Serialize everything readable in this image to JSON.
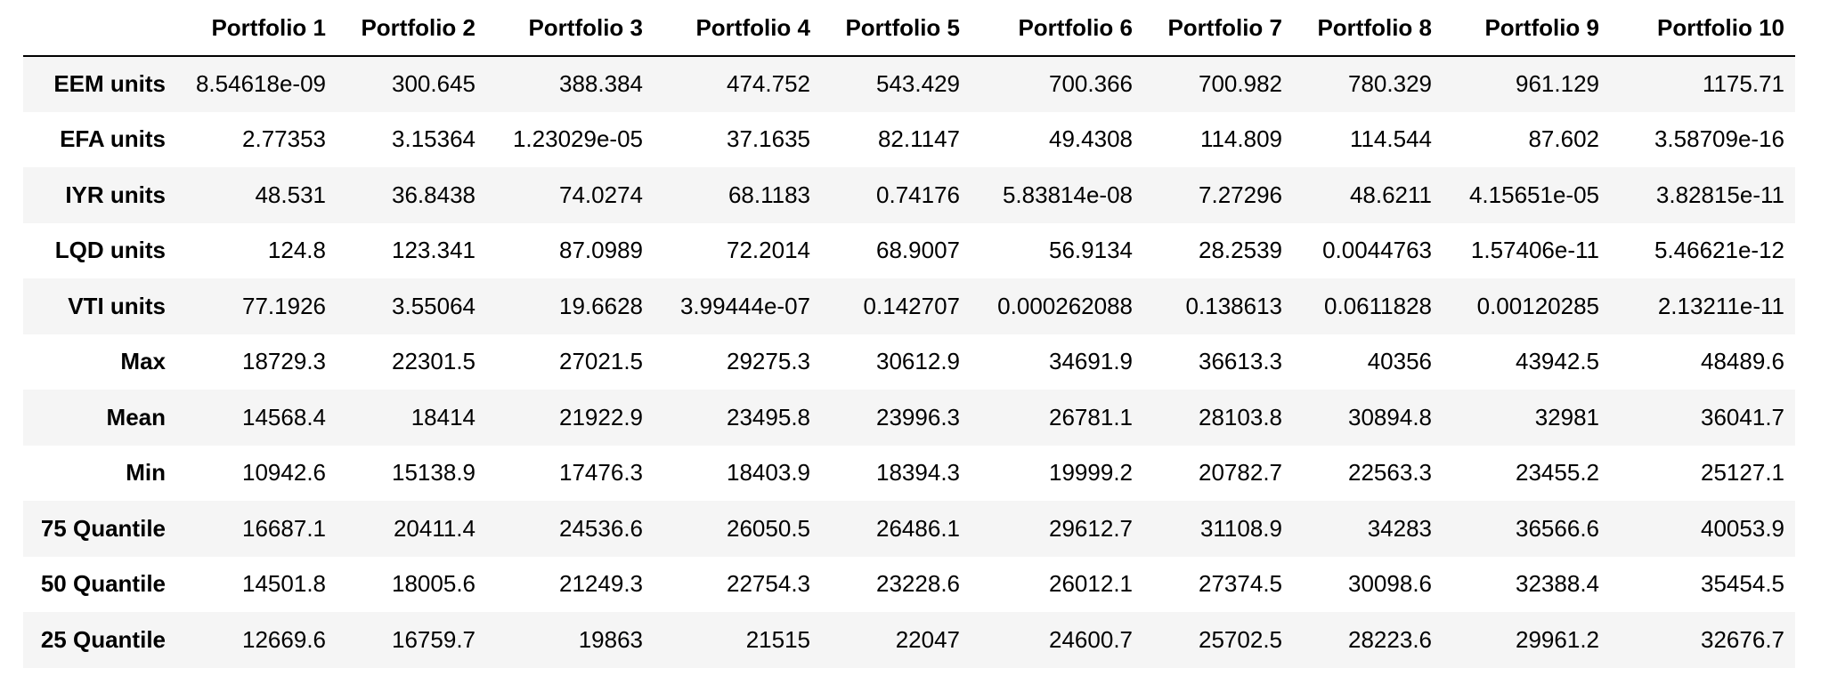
{
  "table": {
    "corner": "",
    "columns": [
      "Portfolio 1",
      "Portfolio 2",
      "Portfolio 3",
      "Portfolio 4",
      "Portfolio 5",
      "Portfolio 6",
      "Portfolio 7",
      "Portfolio 8",
      "Portfolio 9",
      "Portfolio 10"
    ],
    "rows": [
      {
        "label": "EEM units",
        "values": [
          "8.54618e-09",
          "300.645",
          "388.384",
          "474.752",
          "543.429",
          "700.366",
          "700.982",
          "780.329",
          "961.129",
          "1175.71"
        ]
      },
      {
        "label": "EFA units",
        "values": [
          "2.77353",
          "3.15364",
          "1.23029e-05",
          "37.1635",
          "82.1147",
          "49.4308",
          "114.809",
          "114.544",
          "87.602",
          "3.58709e-16"
        ]
      },
      {
        "label": "IYR units",
        "values": [
          "48.531",
          "36.8438",
          "74.0274",
          "68.1183",
          "0.74176",
          "5.83814e-08",
          "7.27296",
          "48.6211",
          "4.15651e-05",
          "3.82815e-11"
        ]
      },
      {
        "label": "LQD units",
        "values": [
          "124.8",
          "123.341",
          "87.0989",
          "72.2014",
          "68.9007",
          "56.9134",
          "28.2539",
          "0.0044763",
          "1.57406e-11",
          "5.46621e-12"
        ]
      },
      {
        "label": "VTI units",
        "values": [
          "77.1926",
          "3.55064",
          "19.6628",
          "3.99444e-07",
          "0.142707",
          "0.000262088",
          "0.138613",
          "0.0611828",
          "0.00120285",
          "2.13211e-11"
        ]
      },
      {
        "label": "Max",
        "values": [
          "18729.3",
          "22301.5",
          "27021.5",
          "29275.3",
          "30612.9",
          "34691.9",
          "36613.3",
          "40356",
          "43942.5",
          "48489.6"
        ]
      },
      {
        "label": "Mean",
        "values": [
          "14568.4",
          "18414",
          "21922.9",
          "23495.8",
          "23996.3",
          "26781.1",
          "28103.8",
          "30894.8",
          "32981",
          "36041.7"
        ]
      },
      {
        "label": "Min",
        "values": [
          "10942.6",
          "15138.9",
          "17476.3",
          "18403.9",
          "18394.3",
          "19999.2",
          "20782.7",
          "22563.3",
          "23455.2",
          "25127.1"
        ]
      },
      {
        "label": "75 Quantile",
        "values": [
          "16687.1",
          "20411.4",
          "24536.6",
          "26050.5",
          "26486.1",
          "29612.7",
          "31108.9",
          "34283",
          "36566.6",
          "40053.9"
        ]
      },
      {
        "label": "50 Quantile",
        "values": [
          "14501.8",
          "18005.6",
          "21249.3",
          "22754.3",
          "23228.6",
          "26012.1",
          "27374.5",
          "30098.6",
          "32388.4",
          "35454.5"
        ]
      },
      {
        "label": "25 Quantile",
        "values": [
          "12669.6",
          "16759.7",
          "19863",
          "21515",
          "22047",
          "24600.7",
          "25702.5",
          "28223.6",
          "29961.2",
          "32676.7"
        ]
      }
    ]
  }
}
